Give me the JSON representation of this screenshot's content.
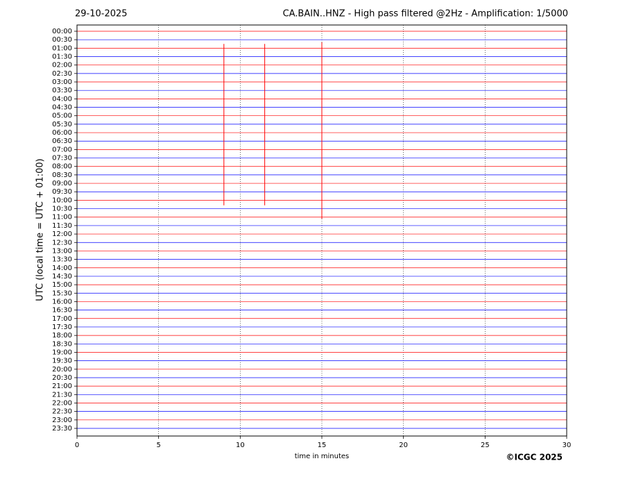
{
  "chart_data": {
    "type": "helicorder",
    "date": "29-10-2025",
    "title": "CA.BAIN..HNZ - High pass filtered @2Hz - Amplification: 1/5000",
    "y_label": "UTC (local time = UTC + 01:00)",
    "x_label": "time in minutes",
    "credit": "©ICGC 2025",
    "xlim": [
      0,
      30
    ],
    "xticks": [
      0,
      5,
      10,
      15,
      20,
      25,
      30
    ],
    "grid": true,
    "rows": [
      "00:00",
      "00:30",
      "01:00",
      "01:30",
      "02:00",
      "02:30",
      "03:00",
      "03:30",
      "04:00",
      "04:30",
      "05:00",
      "05:30",
      "06:00",
      "06:30",
      "07:00",
      "07:30",
      "08:00",
      "08:30",
      "09:00",
      "09:30",
      "10:00",
      "10:30",
      "11:00",
      "11:30",
      "12:00",
      "12:30",
      "13:00",
      "13:30",
      "14:00",
      "14:30",
      "15:00",
      "15:30",
      "16:00",
      "16:30",
      "17:00",
      "17:30",
      "18:00",
      "18:30",
      "19:00",
      "19:30",
      "20:00",
      "20:30",
      "21:00",
      "21:30",
      "22:00",
      "22:30",
      "23:00",
      "23:30"
    ],
    "trace_colors": [
      "#ff0000",
      "#0000ff"
    ],
    "events": [
      {
        "row": 10,
        "minute": 9.0,
        "up": 8.5,
        "down": 10.6
      },
      {
        "row": 10,
        "minute": 11.5,
        "up": 8.5,
        "down": 10.6
      },
      {
        "row": 10,
        "minute": 15.0,
        "up": 8.7,
        "down": 12.2
      }
    ]
  }
}
